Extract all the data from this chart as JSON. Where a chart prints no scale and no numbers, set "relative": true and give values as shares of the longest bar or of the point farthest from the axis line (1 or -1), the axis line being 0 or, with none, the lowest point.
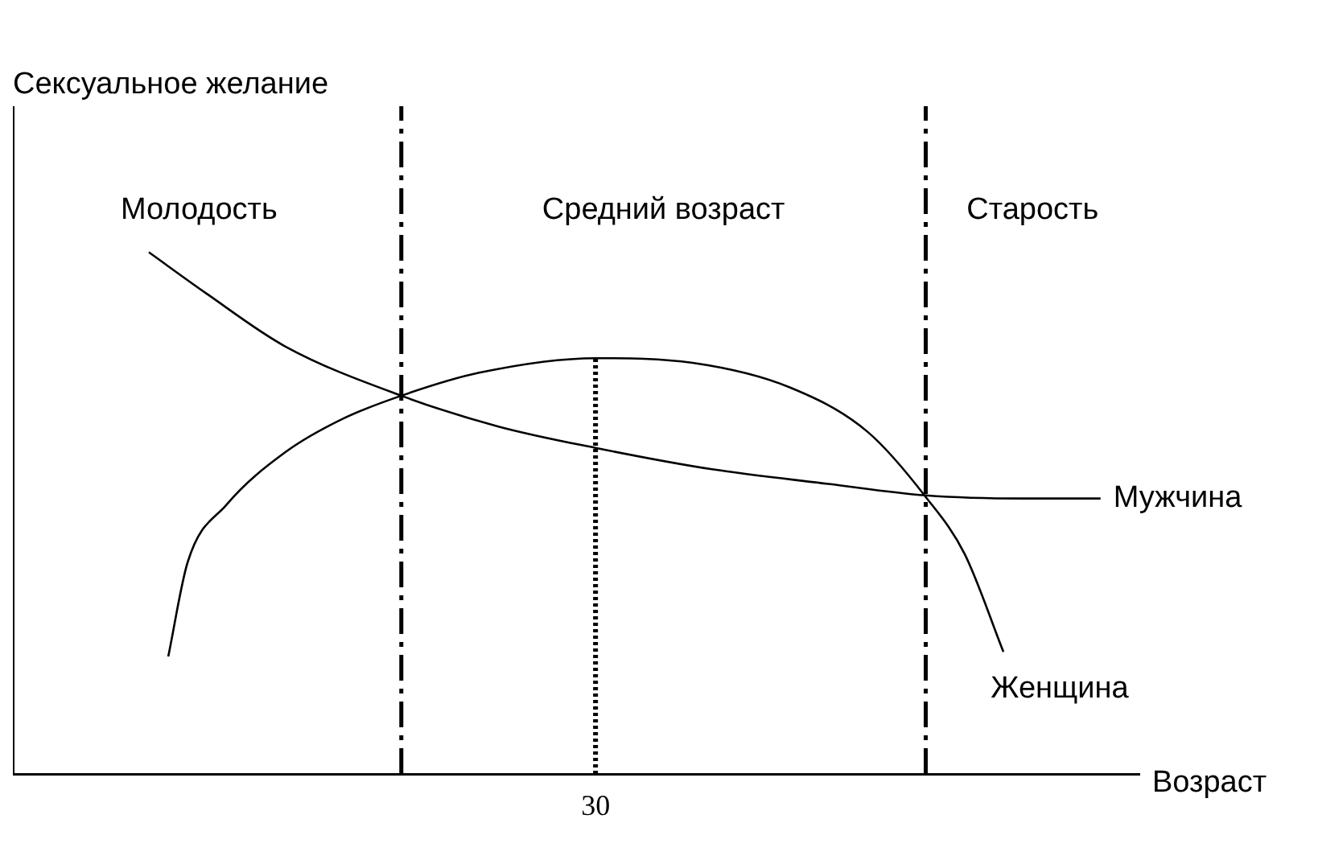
{
  "chart_data": {
    "type": "line",
    "relative": true,
    "ylabel": "Сексуальное желание",
    "xlabel": "Возраст",
    "categories": [
      null,
      null,
      null,
      null,
      null,
      null,
      null,
      null,
      null,
      null,
      null,
      null,
      null,
      null,
      null,
      null,
      null,
      null,
      null,
      null,
      null,
      null,
      null,
      null,
      null,
      null,
      null,
      null,
      null,
      null,
      null,
      null,
      null,
      null,
      null,
      null,
      null,
      null,
      null,
      null,
      null,
      null,
      null,
      null,
      null,
      null,
      null,
      null,
      null,
      null,
      null,
      null,
      null,
      null,
      null,
      null,
      null,
      null,
      null
    ],
    "series": [
      {
        "name": "Мужчина",
        "color": "#000000",
        "values": [
          null,
          null,
          null,
          null,
          null,
          null,
          null,
          1.0,
          null,
          null,
          0.92,
          null,
          null,
          null,
          0.82,
          null,
          null,
          null,
          null,
          null,
          0.725,
          null,
          null,
          null,
          null,
          0.666,
          null,
          null,
          null,
          null,
          0.625,
          null,
          null,
          null,
          null,
          null,
          0.584,
          null,
          null,
          null,
          null,
          null,
          0.556,
          null,
          null,
          null,
          null,
          0.534,
          null,
          null,
          null,
          null,
          0.528,
          null,
          null,
          null,
          0.528,
          null,
          null
        ]
      },
      {
        "name": "Женщина",
        "color": "#000000",
        "values": [
          null,
          null,
          null,
          null,
          null,
          null,
          null,
          null,
          0.225,
          0.406,
          null,
          0.516,
          null,
          null,
          0.616,
          null,
          null,
          0.681,
          null,
          null,
          0.725,
          null,
          null,
          null,
          0.769,
          null,
          null,
          null,
          null,
          null,
          0.797,
          null,
          null,
          null,
          null,
          0.788,
          null,
          null,
          null,
          null,
          0.741,
          null,
          null,
          null,
          0.656,
          null,
          null,
          0.531,
          null,
          0.422,
          null,
          0.234,
          null,
          null,
          null,
          null,
          null,
          null,
          null
        ]
      }
    ],
    "annotations": [
      "Молодость",
      "Средний возраст",
      "Старость",
      "30"
    ],
    "grid": false,
    "legend": false,
    "marker": "none"
  }
}
